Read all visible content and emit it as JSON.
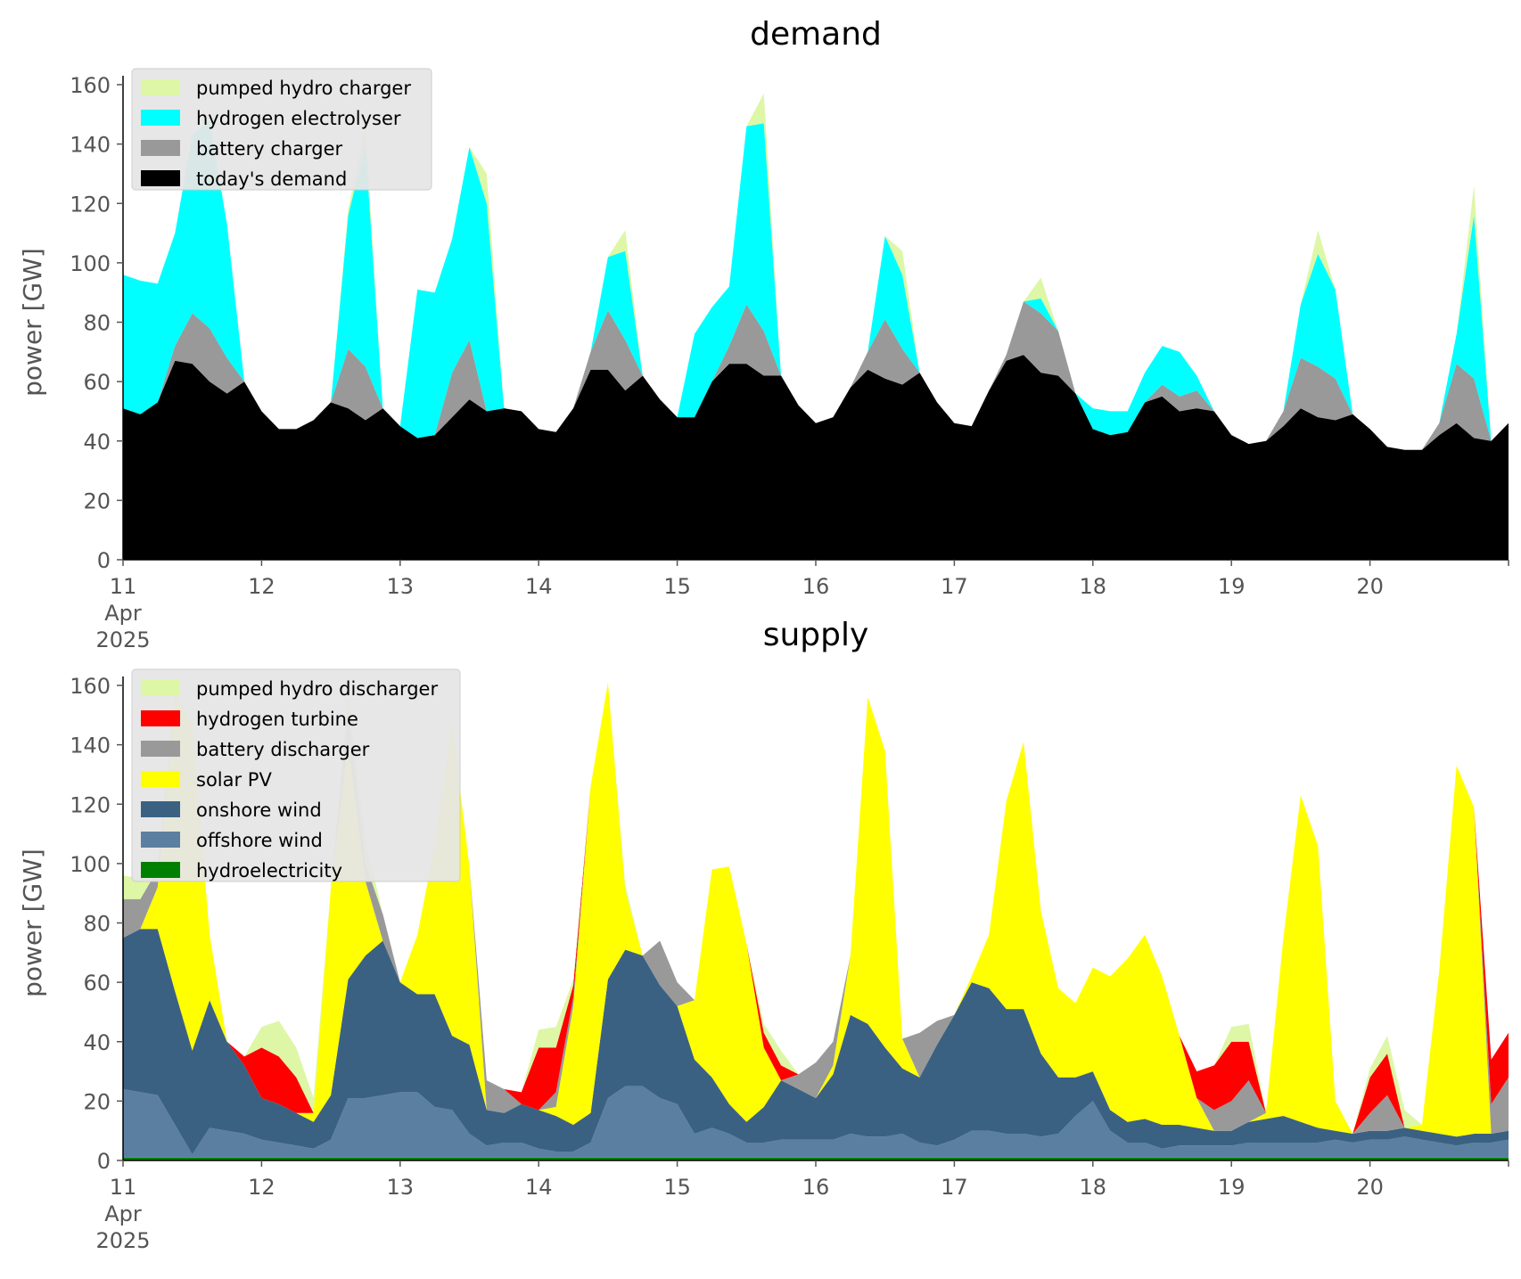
{
  "chart_data": [
    {
      "type": "area",
      "title": "demand",
      "ylabel": "power [GW]",
      "xlabel": "",
      "ylim": [
        0,
        160
      ],
      "yticks": [
        0,
        20,
        40,
        60,
        80,
        100,
        120,
        140,
        160
      ],
      "xlim": [
        "2025-04-11 00:00",
        "2025-04-20 23:00"
      ],
      "x_tick_labels": [
        "11",
        "12",
        "13",
        "14",
        "15",
        "16",
        "17",
        "18",
        "19",
        "20"
      ],
      "x_tick_sublabels": [
        "Apr",
        "2025"
      ],
      "grid": false,
      "stacked": true,
      "legend_position": "upper-left",
      "x_time_step_hours": 3,
      "series": [
        {
          "name": "today's demand",
          "color": "#000000",
          "values": [
            51,
            49,
            53,
            67,
            66,
            60,
            56,
            60,
            50,
            44,
            44,
            47,
            53,
            51,
            47,
            51,
            45,
            41,
            42,
            48,
            54,
            50,
            51,
            50,
            44,
            43,
            51,
            64,
            64,
            57,
            62,
            54,
            48,
            48,
            60,
            66,
            66,
            62,
            62,
            52,
            46,
            48,
            58,
            64,
            61,
            59,
            63,
            53,
            46,
            45,
            57,
            67,
            69,
            63,
            62,
            56,
            44,
            42,
            43,
            53,
            55,
            50,
            51,
            50,
            42,
            39,
            40,
            45,
            51,
            48,
            47,
            49,
            44,
            38,
            37,
            37,
            42,
            46,
            41,
            40,
            46
          ]
        },
        {
          "name": "battery charger",
          "color": "#999999",
          "values": [
            0,
            0,
            0,
            5,
            17,
            18,
            12,
            0,
            0,
            0,
            0,
            0,
            0,
            20,
            18,
            0,
            0,
            0,
            0,
            15,
            20,
            0,
            0,
            0,
            0,
            0,
            0,
            6,
            20,
            17,
            0,
            0,
            0,
            0,
            0,
            6,
            20,
            15,
            0,
            0,
            0,
            0,
            0,
            6,
            20,
            12,
            0,
            0,
            0,
            0,
            0,
            2,
            18,
            20,
            15,
            0,
            0,
            0,
            0,
            0,
            4,
            5,
            6,
            0,
            0,
            0,
            0,
            5,
            17,
            17,
            14,
            0,
            0,
            0,
            0,
            0,
            4,
            20,
            20,
            0,
            0
          ]
        },
        {
          "name": "hydrogen electrolyser",
          "color": "#00ffff",
          "values": [
            45,
            45,
            40,
            38,
            60,
            70,
            45,
            0,
            0,
            0,
            0,
            0,
            0,
            45,
            75,
            0,
            0,
            50,
            48,
            45,
            65,
            70,
            0,
            0,
            0,
            0,
            0,
            0,
            18,
            30,
            0,
            0,
            0,
            28,
            25,
            20,
            60,
            70,
            0,
            0,
            0,
            0,
            0,
            0,
            28,
            25,
            0,
            0,
            0,
            0,
            0,
            0,
            0,
            5,
            0,
            0,
            7,
            8,
            7,
            10,
            13,
            15,
            5,
            0,
            0,
            0,
            0,
            0,
            18,
            38,
            30,
            0,
            0,
            0,
            0,
            0,
            0,
            10,
            55,
            0,
            0
          ]
        },
        {
          "name": "pumped hydro charger",
          "color": "#ddf7a6",
          "values": [
            0,
            0,
            0,
            0,
            0,
            0,
            0,
            0,
            0,
            0,
            0,
            0,
            0,
            2,
            6,
            0,
            0,
            0,
            0,
            0,
            0,
            10,
            0,
            0,
            0,
            0,
            0,
            0,
            0,
            7,
            0,
            0,
            0,
            0,
            0,
            0,
            0,
            10,
            0,
            0,
            0,
            0,
            0,
            0,
            0,
            8,
            0,
            0,
            0,
            0,
            0,
            0,
            0,
            7,
            0,
            0,
            0,
            0,
            0,
            0,
            0,
            0,
            0,
            0,
            0,
            0,
            0,
            0,
            0,
            8,
            0,
            0,
            0,
            0,
            0,
            0,
            0,
            0,
            10,
            0,
            0
          ]
        }
      ]
    },
    {
      "type": "area",
      "title": "supply",
      "ylabel": "power [GW]",
      "xlabel": "",
      "ylim": [
        0,
        160
      ],
      "yticks": [
        0,
        20,
        40,
        60,
        80,
        100,
        120,
        140,
        160
      ],
      "xlim": [
        "2025-04-11 00:00",
        "2025-04-20 23:00"
      ],
      "x_tick_labels": [
        "11",
        "12",
        "13",
        "14",
        "15",
        "16",
        "17",
        "18",
        "19",
        "20"
      ],
      "x_tick_sublabels": [
        "Apr",
        "2025"
      ],
      "grid": false,
      "stacked": true,
      "legend_position": "upper-left",
      "x_time_step_hours": 3,
      "series": [
        {
          "name": "hydroelectricity",
          "color": "#008000",
          "values": [
            1,
            1,
            1,
            1,
            1,
            1,
            1,
            1,
            1,
            1,
            1,
            1,
            1,
            1,
            1,
            1,
            1,
            1,
            1,
            1,
            1,
            1,
            1,
            1,
            1,
            1,
            1,
            1,
            1,
            1,
            1,
            1,
            1,
            1,
            1,
            1,
            1,
            1,
            1,
            1,
            1,
            1,
            1,
            1,
            1,
            1,
            1,
            1,
            1,
            1,
            1,
            1,
            1,
            1,
            1,
            1,
            1,
            1,
            1,
            1,
            1,
            1,
            1,
            1,
            1,
            1,
            1,
            1,
            1,
            1,
            1,
            1,
            1,
            1,
            1,
            1,
            1,
            1,
            1,
            1,
            1
          ]
        },
        {
          "name": "offshore wind",
          "color": "#5b7fa0",
          "values": [
            23,
            22,
            21,
            11,
            1,
            10,
            9,
            8,
            6,
            5,
            4,
            3,
            6,
            20,
            20,
            21,
            22,
            22,
            17,
            16,
            8,
            4,
            5,
            5,
            3,
            2,
            2,
            5,
            20,
            24,
            24,
            20,
            18,
            8,
            10,
            8,
            5,
            5,
            6,
            6,
            6,
            6,
            8,
            7,
            7,
            8,
            5,
            4,
            6,
            9,
            9,
            8,
            8,
            7,
            8,
            14,
            19,
            9,
            5,
            5,
            3,
            4,
            4,
            4,
            4,
            5,
            5,
            5,
            5,
            5,
            6,
            5,
            6,
            6,
            7,
            6,
            5,
            4,
            5,
            5,
            6
          ]
        },
        {
          "name": "onshore wind",
          "color": "#3b6182",
          "values": [
            51,
            55,
            56,
            45,
            35,
            43,
            30,
            23,
            14,
            13,
            11,
            9,
            15,
            40,
            48,
            52,
            37,
            33,
            38,
            25,
            30,
            12,
            10,
            13,
            13,
            12,
            9,
            10,
            40,
            46,
            44,
            38,
            33,
            25,
            17,
            10,
            7,
            12,
            20,
            17,
            14,
            22,
            40,
            38,
            30,
            22,
            22,
            34,
            42,
            50,
            48,
            42,
            42,
            28,
            19,
            13,
            10,
            7,
            7,
            8,
            8,
            7,
            6,
            5,
            5,
            7,
            8,
            9,
            7,
            5,
            3,
            3,
            3,
            3,
            3,
            3,
            3,
            3,
            3,
            3,
            3
          ]
        },
        {
          "name": "solar PV",
          "color": "#ffff00",
          "values": [
            0,
            0,
            14,
            100,
            110,
            22,
            0,
            0,
            0,
            0,
            0,
            3,
            70,
            80,
            25,
            0,
            0,
            20,
            50,
            105,
            60,
            0,
            0,
            0,
            0,
            3,
            40,
            110,
            100,
            20,
            0,
            0,
            0,
            20,
            70,
            80,
            60,
            20,
            0,
            0,
            0,
            3,
            20,
            110,
            100,
            10,
            0,
            0,
            0,
            2,
            18,
            70,
            90,
            48,
            30,
            25,
            35,
            45,
            55,
            62,
            50,
            30,
            10,
            0,
            0,
            0,
            2,
            60,
            110,
            95,
            10,
            0,
            0,
            0,
            0,
            2,
            55,
            125,
            110,
            0,
            0
          ]
        },
        {
          "name": "battery discharger",
          "color": "#999999",
          "values": [
            13,
            10,
            6,
            0,
            0,
            0,
            0,
            0,
            0,
            0,
            0,
            0,
            0,
            11,
            6,
            9,
            0,
            0,
            0,
            0,
            0,
            10,
            8,
            0,
            0,
            5,
            3,
            0,
            0,
            0,
            0,
            15,
            8,
            0,
            0,
            0,
            0,
            0,
            0,
            5,
            12,
            8,
            0,
            0,
            0,
            0,
            15,
            8,
            0,
            0,
            0,
            0,
            0,
            0,
            0,
            0,
            0,
            0,
            0,
            0,
            0,
            0,
            0,
            7,
            10,
            14,
            0,
            0,
            0,
            0,
            0,
            0,
            6,
            12,
            0,
            0,
            0,
            0,
            0,
            10,
            18
          ]
        },
        {
          "name": "hydrogen turbine",
          "color": "#ff0000",
          "values": [
            0,
            0,
            0,
            0,
            0,
            0,
            0,
            3,
            17,
            16,
            12,
            0,
            0,
            0,
            0,
            0,
            0,
            0,
            0,
            0,
            0,
            0,
            0,
            4,
            21,
            15,
            4,
            0,
            0,
            0,
            0,
            0,
            0,
            0,
            0,
            0,
            0,
            5,
            5,
            0,
            0,
            0,
            0,
            0,
            0,
            0,
            0,
            0,
            0,
            0,
            0,
            0,
            0,
            0,
            0,
            0,
            0,
            0,
            0,
            0,
            0,
            0,
            9,
            15,
            20,
            13,
            0,
            0,
            0,
            0,
            0,
            0,
            12,
            14,
            0,
            0,
            0,
            0,
            0,
            15,
            15
          ]
        },
        {
          "name": "pumped hydro discharger",
          "color": "#ddf7a6",
          "values": [
            8,
            7,
            0,
            0,
            0,
            0,
            0,
            0,
            7,
            12,
            10,
            5,
            0,
            5,
            8,
            0,
            0,
            0,
            0,
            0,
            0,
            0,
            0,
            0,
            6,
            7,
            2,
            0,
            0,
            2,
            0,
            0,
            0,
            0,
            0,
            0,
            0,
            3,
            5,
            0,
            0,
            0,
            0,
            0,
            0,
            0,
            0,
            0,
            0,
            0,
            0,
            0,
            0,
            0,
            0,
            0,
            0,
            0,
            0,
            0,
            0,
            0,
            0,
            0,
            5,
            6,
            0,
            0,
            0,
            0,
            0,
            0,
            3,
            6,
            6,
            0,
            0,
            0,
            0,
            0,
            0
          ]
        }
      ]
    }
  ]
}
